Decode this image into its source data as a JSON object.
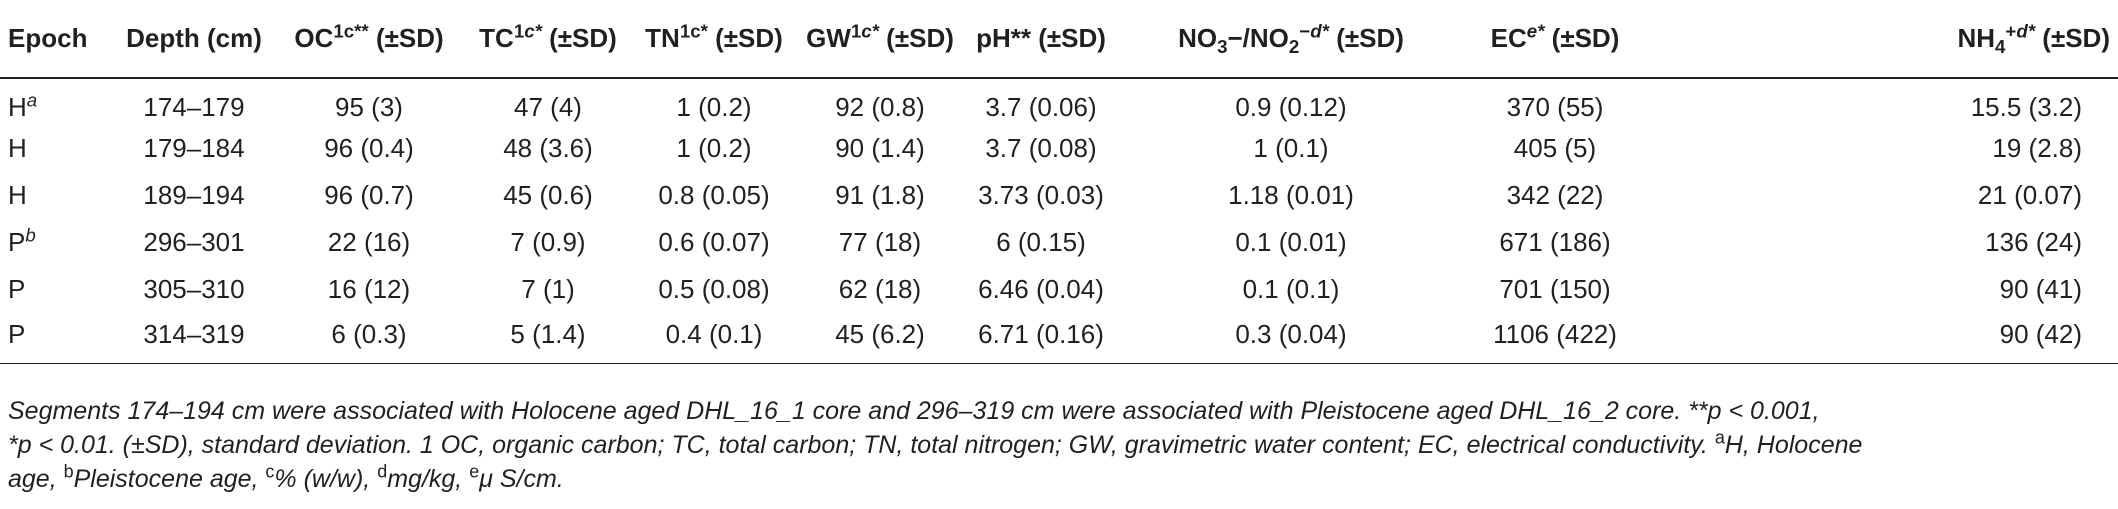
{
  "headers": [
    {
      "text": "Epoch",
      "sup": "",
      "sup_italic": "",
      "tail": ""
    },
    {
      "text": "Depth (cm)",
      "sup": "",
      "sup_italic": "",
      "tail": ""
    },
    {
      "text": "OC",
      "sup": "1c**",
      "sup_italic": "",
      "tail": " (±SD)"
    },
    {
      "text": "TC",
      "sup": "1",
      "sup_italic": "c*",
      "tail": " (±SD)"
    },
    {
      "text": "TN",
      "sup": "1c*",
      "sup_italic": "",
      "tail": " (±SD)"
    },
    {
      "text": "GW",
      "sup": "1",
      "sup_italic": "c*",
      "tail": " (±SD)"
    },
    {
      "text": "pH**",
      "sup": "",
      "sup_italic": "",
      "tail": " (±SD)"
    },
    {
      "text": "NO",
      "sub": "3",
      "mid": "−/NO",
      "sub2": "2",
      "sup": "−",
      "sup_italic": "d*",
      "tail": " (±SD)"
    },
    {
      "text": "EC",
      "sup": "",
      "sup_italic": "e*",
      "tail": " (±SD)"
    },
    {
      "text": "NH",
      "sub": "4",
      "sup": "+",
      "sup_italic": "d*",
      "tail": " (±SD)"
    }
  ],
  "rows": [
    {
      "epoch": "H",
      "epoch_sup": "a",
      "depth": "174–179",
      "oc": "95 (3)",
      "tc": "47 (4)",
      "tn": "1 (0.2)",
      "gw": "92 (0.8)",
      "ph": "3.7 (0.06)",
      "no": "0.9 (0.12)",
      "ec": "370 (55)",
      "nh": "15.5 (3.2)"
    },
    {
      "epoch": "H",
      "epoch_sup": "",
      "depth": "179–184",
      "oc": "96 (0.4)",
      "tc": "48 (3.6)",
      "tn": "1 (0.2)",
      "gw": "90 (1.4)",
      "ph": "3.7 (0.08)",
      "no": "1 (0.1)",
      "ec": "405 (5)",
      "nh": "19 (2.8)"
    },
    {
      "epoch": "H",
      "epoch_sup": "",
      "depth": "189–194",
      "oc": "96 (0.7)",
      "tc": "45 (0.6)",
      "tn": "0.8 (0.05)",
      "gw": "91 (1.8)",
      "ph": "3.73 (0.03)",
      "no": "1.18 (0.01)",
      "ec": "342 (22)",
      "nh": "21 (0.07)"
    },
    {
      "epoch": "P",
      "epoch_sup": "b",
      "depth": "296–301",
      "oc": "22 (16)",
      "tc": "7 (0.9)",
      "tn": "0.6 (0.07)",
      "gw": "77 (18)",
      "ph": "6 (0.15)",
      "no": "0.1 (0.01)",
      "ec": "671 (186)",
      "nh": "136 (24)"
    },
    {
      "epoch": "P",
      "epoch_sup": "",
      "depth": "305–310",
      "oc": "16 (12)",
      "tc": "7 (1)",
      "tn": "0.5 (0.08)",
      "gw": "62 (18)",
      "ph": "6.46 (0.04)",
      "no": "0.1 (0.1)",
      "ec": "701 (150)",
      "nh": "90 (41)"
    },
    {
      "epoch": "P",
      "epoch_sup": "",
      "depth": "314–319",
      "oc": "6 (0.3)",
      "tc": "5 (1.4)",
      "tn": "0.4 (0.1)",
      "gw": "45 (6.2)",
      "ph": "6.71 (0.16)",
      "no": "0.3 (0.04)",
      "ec": "1106 (422)",
      "nh": "90 (42)"
    }
  ],
  "footnote": {
    "line1": "Segments 174–194 cm were associated with Holocene aged DHL_16_1 core and 296–319 cm were associated with Pleistocene aged DHL_16_2 core. **p < 0.001,",
    "line2": "*p < 0.01. (±SD), standard deviation. 1 OC, organic carbon; TC, total carbon; TN, total nitrogen; GW, gravimetric water content; EC, electrical conductivity.",
    "a_mark": "a",
    "a_text": "H, Holocene",
    "line3_a": "age, ",
    "b_mark": "b",
    "b_text": "Pleistocene age, ",
    "c_mark": "c",
    "c_text": "% (w/w), ",
    "d_mark": "d",
    "d_text": "mg/kg, ",
    "e_mark": "e",
    "e_text": "μ S/cm."
  }
}
